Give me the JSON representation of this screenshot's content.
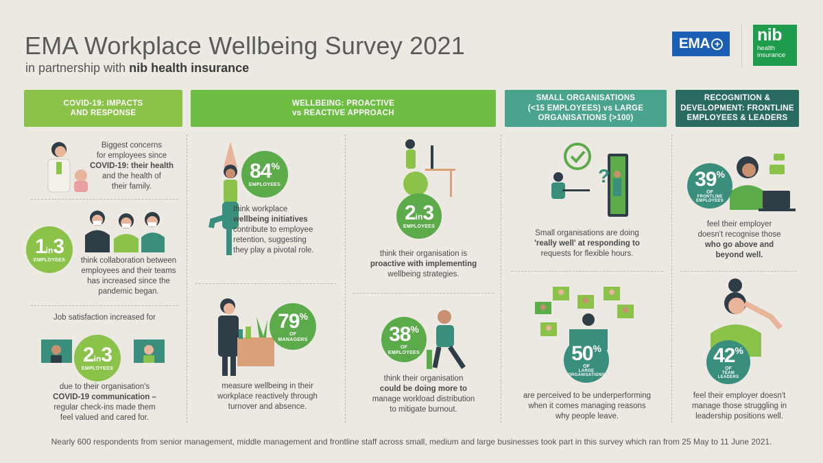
{
  "header": {
    "title": "EMA Workplace Wellbeing Survey 2021",
    "subtitle_prefix": "in partnership with ",
    "subtitle_bold": "nib health insurance"
  },
  "logos": {
    "ema": "EMA",
    "nib": "nib",
    "nib_sub1": "health",
    "nib_sub2": "insurance"
  },
  "columns": {
    "covid": "COVID-19: IMPACTS AND RESPONSE",
    "wellbeing_line1": "WELLBEING: PROACTIVE",
    "wellbeing_line2": "vs REACTIVE APPROACH",
    "small_line1": "SMALL ORGANISATIONS",
    "small_line2": "(<15 EMPLOYEES) vs LARGE",
    "small_line3": "ORGANISATIONS (>100)",
    "recog_line1": "RECOGNITION &",
    "recog_line2": "DEVELOPMENT: FRONTLINE",
    "recog_line3": "EMPLOYEES & LEADERS"
  },
  "colors": {
    "green_light": "#8bc34a",
    "green_header": "#6fbe44",
    "teal_header": "#4aa38d",
    "dark_teal_header": "#2a6b61"
  },
  "covid": {
    "concern": [
      "Biggest concerns",
      "for employees since",
      "COVID-19: their health",
      "and the health of",
      "their family."
    ],
    "stat1": {
      "big": "1",
      "in": "in",
      "big2": "3",
      "label": "EMPLOYEES"
    },
    "stat1_text": [
      "think collaboration between",
      "employees and their teams",
      "has increased since the",
      "pandemic began."
    ],
    "job_sat": "Job satisfaction increased for",
    "stat2": {
      "big": "2",
      "in": "in",
      "big2": "3",
      "label": "EMPLOYEES"
    },
    "stat2_text": [
      "due to their organisation's",
      "COVID-19 communication –",
      "regular check-ins made them",
      "feel valued and cared for."
    ]
  },
  "wellbeing": {
    "s84": {
      "num": "84",
      "unit": "%",
      "label": "EMPLOYEES"
    },
    "s84_text": [
      "think workplace",
      "wellbeing initiatives",
      "contribute to employee",
      "retention, suggesting",
      "they play a pivotal role."
    ],
    "s23": {
      "big": "2",
      "in": "in",
      "big2": "3",
      "label": "EMPLOYEES"
    },
    "s23_text": [
      "think their organisation is",
      "proactive with implementing",
      "wellbeing strategies."
    ],
    "s79": {
      "num": "79",
      "unit": "%",
      "of": "OF",
      "label": "MANAGERS"
    },
    "s79_text": [
      "measure wellbeing in their",
      "workplace reactively through",
      "turnover and absence."
    ],
    "s38": {
      "num": "38",
      "unit": "%",
      "of": "OF",
      "label": "EMPLOYEES"
    },
    "s38_text": [
      "think their organisation",
      "could be doing more to",
      "manage workload distribution",
      "to mitigate burnout."
    ]
  },
  "orgs": {
    "small_text": [
      "Small organisations are doing",
      "'really well' at responding to",
      "requests for flexible hours."
    ],
    "s50": {
      "num": "50",
      "unit": "%",
      "of": "OF",
      "label1": "LARGE",
      "label2": "ORGANISATIONS"
    },
    "s50_text": [
      "are perceived to be underperforming",
      "when it comes managing reasons",
      "why people leave."
    ]
  },
  "recog": {
    "s39": {
      "num": "39",
      "unit": "%",
      "of": "OF",
      "label1": "FRONTLINE",
      "label2": "EMPLOYEES"
    },
    "s39_text": [
      "feel their employer",
      "doesn't recognise those",
      "who go above and",
      "beyond well."
    ],
    "s42": {
      "num": "42",
      "unit": "%",
      "of": "OF",
      "label1": "TEAM",
      "label2": "LEADERS"
    },
    "s42_text": [
      "feel their employer doesn't",
      "manage those struggling in",
      "leadership positions well."
    ]
  },
  "footer": "Nearly 600 respondents from senior management, middle management and frontline staff across small, medium and large businesses took part in this survey which ran from 25 May to 11 June 2021."
}
